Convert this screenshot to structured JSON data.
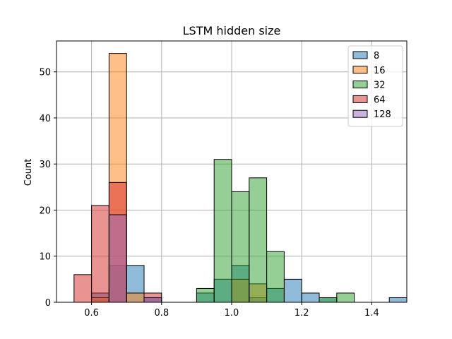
{
  "chart_data": {
    "type": "bar",
    "subtype": "overlaid-histogram",
    "title": "LSTM hidden size",
    "xlabel": "",
    "ylabel": "Count",
    "xlim": [
      0.5,
      1.5
    ],
    "ylim": [
      0,
      56.7
    ],
    "xticks": [
      "0.6",
      "0.8",
      "1.0",
      "1.2",
      "1.4"
    ],
    "yticks": [
      "0",
      "10",
      "20",
      "30",
      "40",
      "50"
    ],
    "grid": true,
    "legend_position": "top-right",
    "bin_width": 0.05,
    "series": [
      {
        "name": "8",
        "color": "#1f77b4",
        "bins": [
          {
            "x0": 0.6,
            "count": 2
          },
          {
            "x0": 0.65,
            "count": 8
          },
          {
            "x0": 0.7,
            "count": 8
          },
          {
            "x0": 0.75,
            "count": 1
          },
          {
            "x0": 0.9,
            "count": 2
          },
          {
            "x0": 0.95,
            "count": 5
          },
          {
            "x0": 1.0,
            "count": 8
          },
          {
            "x0": 1.05,
            "count": 1
          },
          {
            "x0": 1.1,
            "count": 3
          },
          {
            "x0": 1.15,
            "count": 5
          },
          {
            "x0": 1.2,
            "count": 2
          },
          {
            "x0": 1.25,
            "count": 1
          },
          {
            "x0": 1.45,
            "count": 1
          }
        ]
      },
      {
        "name": "16",
        "color": "#ff7f0e",
        "bins": [
          {
            "x0": 0.6,
            "count": 1
          },
          {
            "x0": 0.65,
            "count": 54
          },
          {
            "x0": 0.7,
            "count": 2
          },
          {
            "x0": 1.0,
            "count": 5
          },
          {
            "x0": 1.05,
            "count": 4
          }
        ]
      },
      {
        "name": "32",
        "color": "#2ca02c",
        "bins": [
          {
            "x0": 0.9,
            "count": 3
          },
          {
            "x0": 0.95,
            "count": 31
          },
          {
            "x0": 1.0,
            "count": 24
          },
          {
            "x0": 1.05,
            "count": 27
          },
          {
            "x0": 1.1,
            "count": 11
          },
          {
            "x0": 1.25,
            "count": 1
          },
          {
            "x0": 1.3,
            "count": 2
          }
        ]
      },
      {
        "name": "64",
        "color": "#d62728",
        "bins": [
          {
            "x0": 0.55,
            "count": 6
          },
          {
            "x0": 0.6,
            "count": 21
          },
          {
            "x0": 0.65,
            "count": 26
          },
          {
            "x0": 0.75,
            "count": 2
          }
        ]
      },
      {
        "name": "128",
        "color": "#9467bd",
        "bins": [
          {
            "x0": 0.65,
            "count": 19
          },
          {
            "x0": 0.75,
            "count": 1
          }
        ]
      }
    ]
  }
}
